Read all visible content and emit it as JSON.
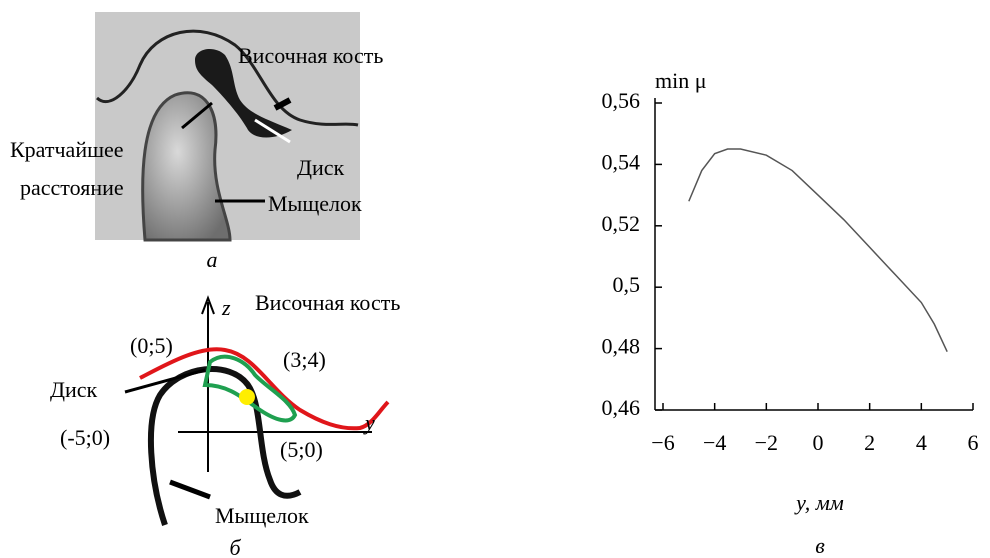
{
  "panel_a": {
    "labels": [
      "Височная кость",
      "Кратчайшее",
      "расстояние",
      "Диск",
      "Мыщелок"
    ],
    "caption": "а"
  },
  "panel_b": {
    "axis_z": "z",
    "axis_y": "y",
    "bone": "Височная кость",
    "p1": "(0;5)",
    "p2": "(3;4)",
    "disk": "Диск",
    "p3": "(-5;0)",
    "p4": "(5;0)",
    "condyle": "Мыщелок",
    "caption": "б"
  },
  "chart_data": {
    "type": "line",
    "ylabel": "min μ",
    "xlabel": "y, мм",
    "caption": "в",
    "color": "#555555",
    "x": [
      -5,
      -4.5,
      -4,
      -3.5,
      -3,
      -2,
      -1,
      0,
      1,
      2,
      3,
      4,
      4.5,
      5
    ],
    "values": [
      0.528,
      0.538,
      0.5435,
      0.545,
      0.545,
      0.543,
      0.538,
      0.53,
      0.522,
      0.513,
      0.504,
      0.495,
      0.488,
      0.479
    ],
    "xlim": [
      -6,
      6
    ],
    "ylim": [
      0.46,
      0.56
    ],
    "xticks": [
      {
        "value": -6,
        "label": "−6"
      },
      {
        "value": -4,
        "label": "−4"
      },
      {
        "value": -2,
        "label": "−2"
      },
      0,
      2,
      4,
      6
    ],
    "yticks": [
      {
        "value": 0.46,
        "label": "0,46"
      },
      {
        "value": 0.48,
        "label": "0,48"
      },
      {
        "value": 0.5,
        "label": "0,5"
      },
      {
        "value": 0.52,
        "label": "0,52"
      },
      {
        "value": 0.54,
        "label": "0,54"
      },
      {
        "value": 0.56,
        "label": "0,56"
      }
    ]
  }
}
